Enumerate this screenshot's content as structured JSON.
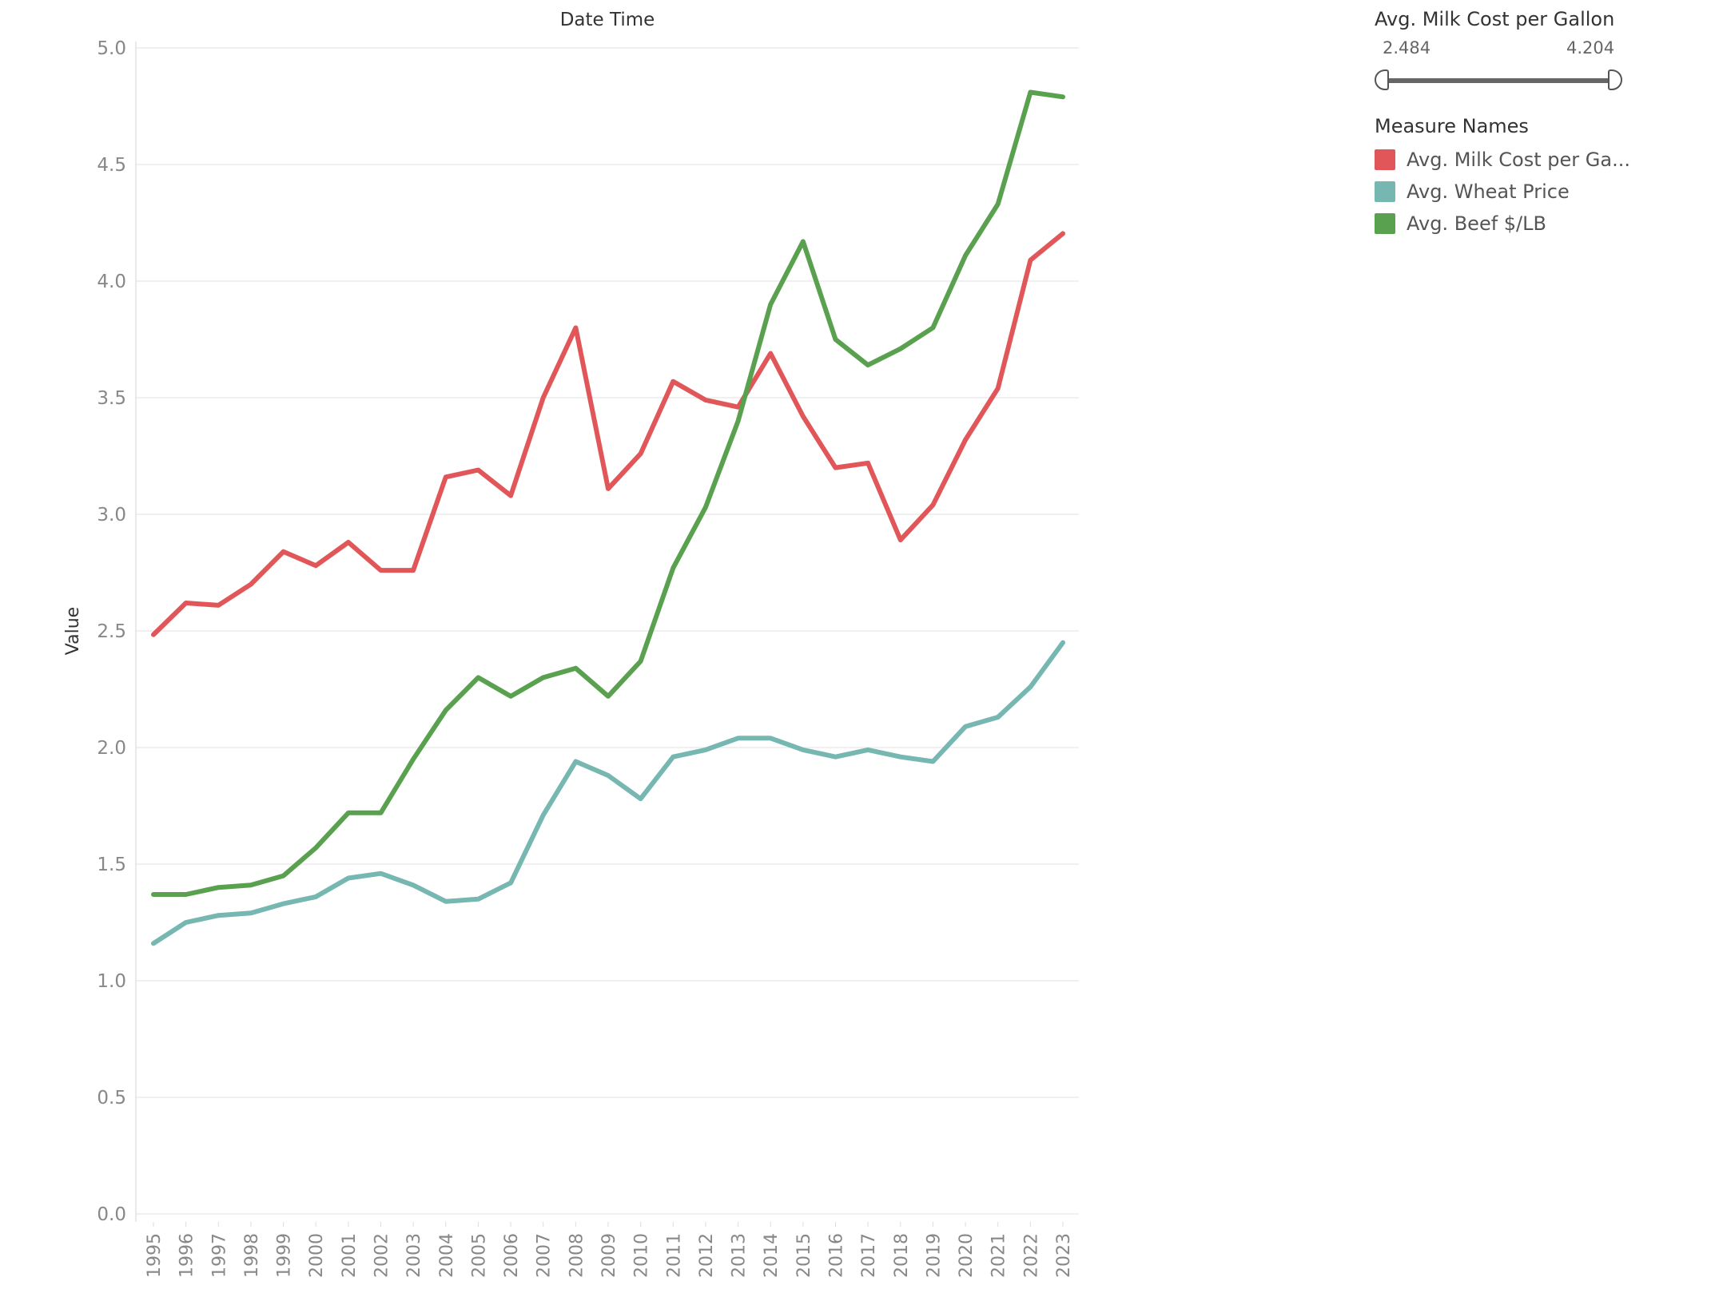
{
  "filter": {
    "title": "Avg. Milk Cost per Gallon",
    "min_label": "2.484",
    "max_label": "4.204"
  },
  "legend": {
    "title": "Measure Names",
    "items": [
      {
        "label": "Avg. Milk Cost per Ga...",
        "color": "#e15759"
      },
      {
        "label": "Avg. Wheat Price",
        "color": "#76b7b2"
      },
      {
        "label": "Avg. Beef $/LB",
        "color": "#59a14f"
      }
    ]
  },
  "chart_data": {
    "type": "line",
    "title": "Date Time",
    "xlabel": "",
    "ylabel": "Value",
    "ylim": [
      0,
      5
    ],
    "yticks": [
      "0.0",
      "0.5",
      "1.0",
      "1.5",
      "2.0",
      "2.5",
      "3.0",
      "3.5",
      "4.0",
      "4.5",
      "5.0"
    ],
    "grid": true,
    "x": [
      "1995",
      "1996",
      "1997",
      "1998",
      "1999",
      "2000",
      "2001",
      "2002",
      "2003",
      "2004",
      "2005",
      "2006",
      "2007",
      "2008",
      "2009",
      "2010",
      "2011",
      "2012",
      "2013",
      "2014",
      "2015",
      "2016",
      "2017",
      "2018",
      "2019",
      "2020",
      "2021",
      "2022",
      "2023"
    ],
    "series": [
      {
        "name": "Avg. Milk Cost per Ga...",
        "color": "#e15759",
        "values": [
          2.484,
          2.62,
          2.61,
          2.7,
          2.84,
          2.78,
          2.88,
          2.76,
          2.76,
          3.16,
          3.19,
          3.08,
          3.5,
          3.8,
          3.11,
          3.26,
          3.57,
          3.49,
          3.46,
          3.69,
          3.42,
          3.2,
          3.22,
          2.89,
          3.04,
          3.32,
          3.54,
          4.09,
          4.204
        ]
      },
      {
        "name": "Avg. Wheat Price",
        "color": "#76b7b2",
        "values": [
          1.16,
          1.25,
          1.28,
          1.29,
          1.33,
          1.36,
          1.44,
          1.46,
          1.41,
          1.34,
          1.35,
          1.42,
          1.71,
          1.94,
          1.88,
          1.78,
          1.96,
          1.99,
          2.04,
          2.04,
          1.99,
          1.96,
          1.99,
          1.96,
          1.94,
          2.09,
          2.13,
          2.26,
          2.45
        ]
      },
      {
        "name": "Avg. Beef $/LB",
        "color": "#59a14f",
        "values": [
          1.37,
          1.37,
          1.4,
          1.41,
          1.45,
          1.57,
          1.72,
          1.72,
          1.95,
          2.16,
          2.3,
          2.22,
          2.3,
          2.34,
          2.22,
          2.37,
          2.77,
          3.03,
          3.4,
          3.9,
          4.17,
          3.75,
          3.64,
          3.71,
          3.8,
          4.11,
          4.33,
          4.81,
          4.79
        ]
      }
    ]
  }
}
